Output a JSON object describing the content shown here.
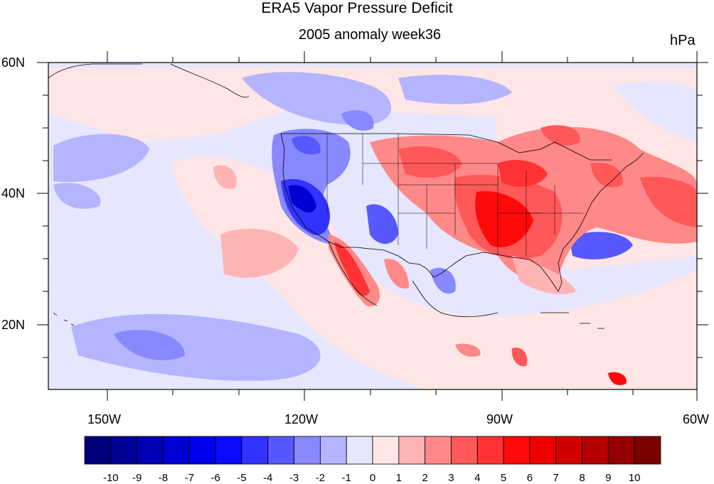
{
  "figure": {
    "title": "ERA5 Vapor Pressure Deficit",
    "subtitle": "2005 anomaly week36",
    "units": "hPa"
  },
  "map": {
    "lon_range": [
      -160,
      -60
    ],
    "lat_range": [
      10,
      60
    ],
    "lat_labels": [
      "60N",
      "40N",
      "20N"
    ],
    "lon_labels": [
      "150W",
      "120W",
      "90W",
      "60W"
    ]
  },
  "colorbar": {
    "labels": [
      "-10",
      "-9",
      "-8",
      "-7",
      "-6",
      "-5",
      "-4",
      "-3",
      "-2",
      "-1",
      "0",
      "1",
      "2",
      "3",
      "4",
      "5",
      "6",
      "7",
      "8",
      "9",
      "10"
    ],
    "colors": [
      "#00007a",
      "#000096",
      "#0000b4",
      "#0000d2",
      "#0000ee",
      "#0a0aff",
      "#3333ff",
      "#5858ff",
      "#8888ff",
      "#b4b4ff",
      "#e6e6ff",
      "#ffe6e6",
      "#ffb4b4",
      "#ff8888",
      "#ff5858",
      "#ff3333",
      "#ff0a0a",
      "#ee0000",
      "#d20000",
      "#b40000",
      "#960000",
      "#7a0000"
    ]
  }
}
